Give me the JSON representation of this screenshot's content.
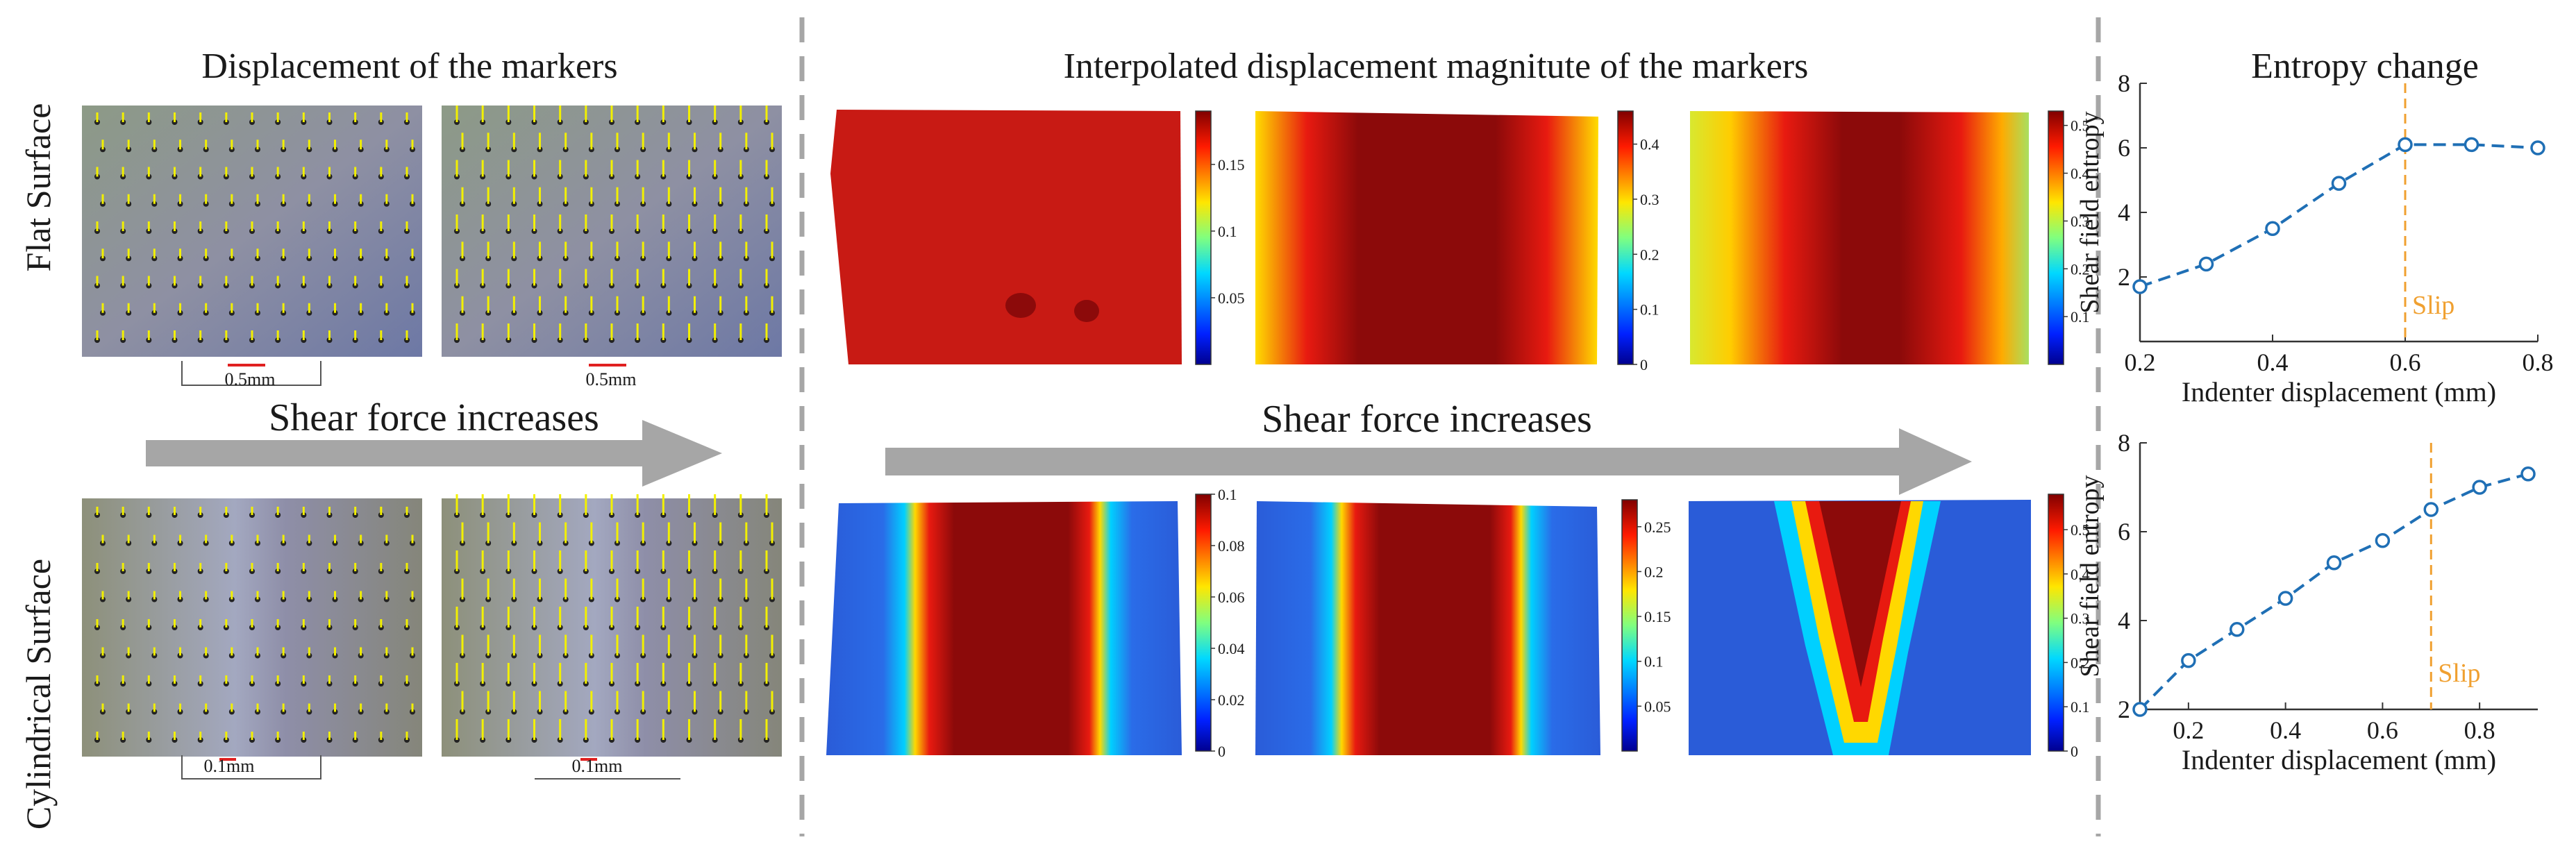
{
  "figure": {
    "row_labels": [
      "Flat Surface",
      "Cylindrical Surface"
    ],
    "sections": {
      "markers_title": "Displacement of the markers",
      "interp_title": "Interpolated displacement magnitute of the markers",
      "entropy_title": "Entropy change"
    },
    "arrow_label": "Shear force increases",
    "scale_labels": [
      "0.5mm",
      "0.5mm",
      "0.1mm",
      "0.1mm"
    ],
    "colorbars": [
      {
        "ticks": [
          "0.15",
          "0.1",
          "0.05"
        ],
        "values": [
          0.15,
          0.1,
          0.05
        ],
        "range": [
          0,
          0.19
        ]
      },
      {
        "ticks": [
          "0.4",
          "0.3",
          "0.2",
          "0.1",
          "0"
        ],
        "values": [
          0.4,
          0.3,
          0.2,
          0.1,
          0
        ],
        "range": [
          0,
          0.46
        ]
      },
      {
        "ticks": [
          "0.5",
          "0.4",
          "0.3",
          "0.2",
          "0.1"
        ],
        "values": [
          0.5,
          0.4,
          0.3,
          0.2,
          0.1
        ],
        "range": [
          0,
          0.53
        ]
      },
      {
        "ticks": [
          "0.1",
          "0.08",
          "0.06",
          "0.04",
          "0.02",
          "0"
        ],
        "values": [
          0.1,
          0.08,
          0.06,
          0.04,
          0.02,
          0
        ],
        "range": [
          0,
          0.1
        ]
      },
      {
        "ticks": [
          "0.25",
          "0.2",
          "0.15",
          "0.1",
          "0.05"
        ],
        "values": [
          0.25,
          0.2,
          0.15,
          0.1,
          0.05
        ],
        "range": [
          0,
          0.28
        ]
      },
      {
        "ticks": [
          "0.5",
          "0.4",
          "0.3",
          "0.2",
          "0.1",
          "0"
        ],
        "values": [
          0.5,
          0.4,
          0.3,
          0.2,
          0.1,
          0
        ],
        "range": [
          0,
          0.58
        ]
      }
    ],
    "colors": {
      "line": "#1f6fb5",
      "slip": "#f0a030",
      "arrow": "#a6a6a6",
      "divider": "#a6a6a6"
    }
  },
  "chart_data": [
    {
      "type": "line",
      "x": [
        0.2,
        0.3,
        0.4,
        0.5,
        0.6,
        0.7,
        0.8
      ],
      "series": [
        {
          "values": [
            1.7,
            2.4,
            3.5,
            4.9,
            6.1,
            6.1,
            6.0
          ]
        }
      ],
      "xlabel": "Indenter displacement (mm)",
      "ylabel": "Shear field entropy",
      "xlim": [
        0.2,
        0.8
      ],
      "ylim": [
        0,
        8
      ],
      "xticks": [
        "0.2",
        "0.4",
        "0.6",
        "0.8"
      ],
      "yticks": [
        "2",
        "4",
        "6",
        "8"
      ],
      "slip_x": 0.6,
      "slip_label": "Slip"
    },
    {
      "type": "line",
      "x": [
        0.1,
        0.2,
        0.3,
        0.4,
        0.5,
        0.6,
        0.7,
        0.8,
        0.9
      ],
      "series": [
        {
          "values": [
            2.0,
            3.1,
            3.8,
            4.5,
            5.3,
            5.8,
            6.5,
            7.0,
            7.3
          ]
        }
      ],
      "xlabel": "Indenter displacement (mm)",
      "ylabel": "Shear field entropy",
      "xlim": [
        0.1,
        0.92
      ],
      "ylim": [
        2,
        8
      ],
      "xticks": [
        "0.2",
        "0.4",
        "0.6",
        "0.8"
      ],
      "yticks": [
        "2",
        "4",
        "6",
        "8"
      ],
      "slip_x": 0.7,
      "slip_label": "Slip"
    }
  ]
}
